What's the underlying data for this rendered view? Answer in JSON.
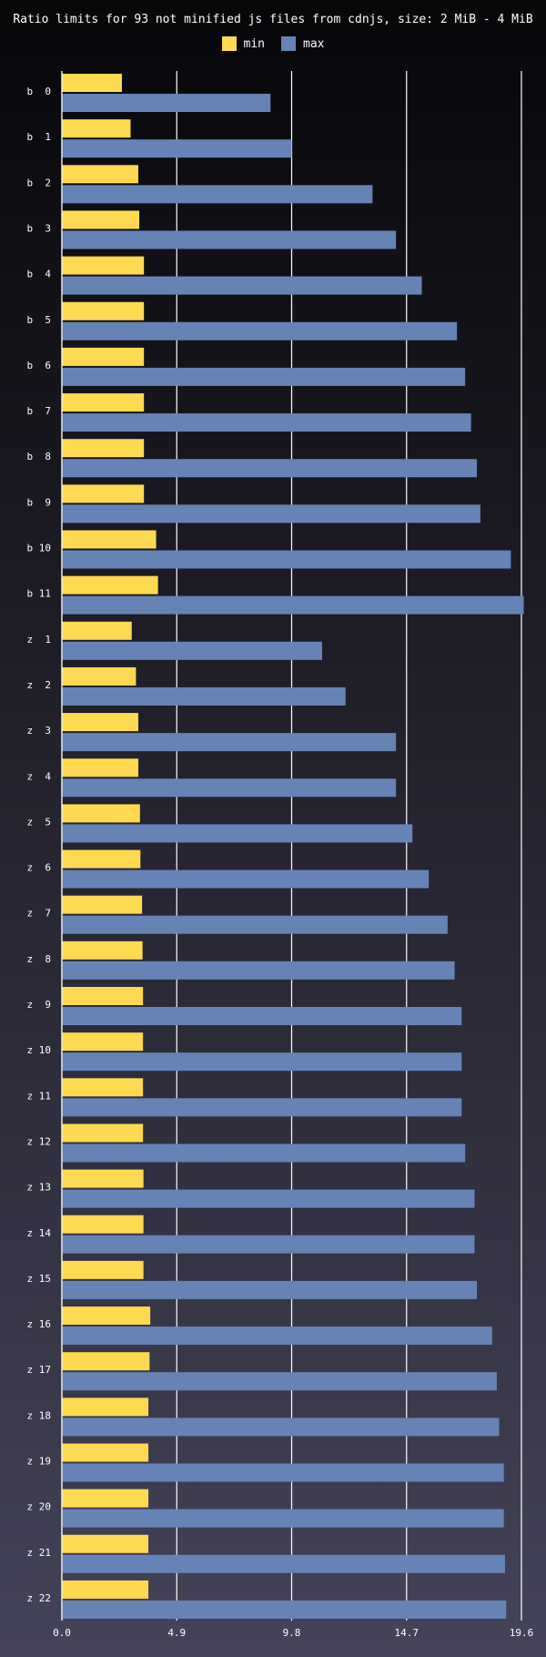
{
  "colors": {
    "min": "#ffd94f",
    "max": "#6683b5",
    "grid": "#ffffff",
    "text": "#ffffff"
  },
  "chart_data": {
    "type": "bar",
    "orientation": "horizontal",
    "title": "Ratio limits for 93 not minified js files from cdnjs, size: 2 MiB - 4 MiB",
    "xlabel": "",
    "ylabel": "",
    "xlim": [
      0,
      19.6
    ],
    "xticks": [
      "0.0",
      "4.9",
      "9.8",
      "14.7",
      "19.6"
    ],
    "grid": true,
    "legend": "top-center",
    "categories": [
      "b 0",
      "b 1",
      "b 2",
      "b 3",
      "b 4",
      "b 5",
      "b 6",
      "b 7",
      "b 8",
      "b 9",
      "b 10",
      "b 11",
      "z 1",
      "z 2",
      "z 3",
      "z 4",
      "z 5",
      "z 6",
      "z 7",
      "z 8",
      "z 9",
      "z 10",
      "z 11",
      "z 12",
      "z 13",
      "z 14",
      "z 15",
      "z 16",
      "z 17",
      "z 18",
      "z 19",
      "z 20",
      "z 21",
      "z 22"
    ],
    "series": [
      {
        "name": "min",
        "values": [
          2.56,
          2.93,
          3.26,
          3.3,
          3.5,
          3.5,
          3.5,
          3.5,
          3.5,
          3.5,
          4.02,
          4.1,
          2.98,
          3.16,
          3.26,
          3.26,
          3.33,
          3.35,
          3.42,
          3.44,
          3.46,
          3.46,
          3.46,
          3.46,
          3.48,
          3.48,
          3.48,
          3.77,
          3.74,
          3.69,
          3.69,
          3.69,
          3.69,
          3.69
        ]
      },
      {
        "name": "max",
        "values": [
          8.9,
          9.8,
          13.25,
          14.25,
          15.35,
          16.85,
          17.2,
          17.45,
          17.7,
          17.85,
          19.15,
          19.7,
          11.1,
          12.1,
          14.25,
          14.25,
          14.95,
          15.65,
          16.45,
          16.75,
          17.05,
          17.05,
          17.05,
          17.2,
          17.6,
          17.6,
          17.7,
          18.35,
          18.55,
          18.65,
          18.85,
          18.85,
          18.9,
          18.95
        ]
      }
    ]
  }
}
